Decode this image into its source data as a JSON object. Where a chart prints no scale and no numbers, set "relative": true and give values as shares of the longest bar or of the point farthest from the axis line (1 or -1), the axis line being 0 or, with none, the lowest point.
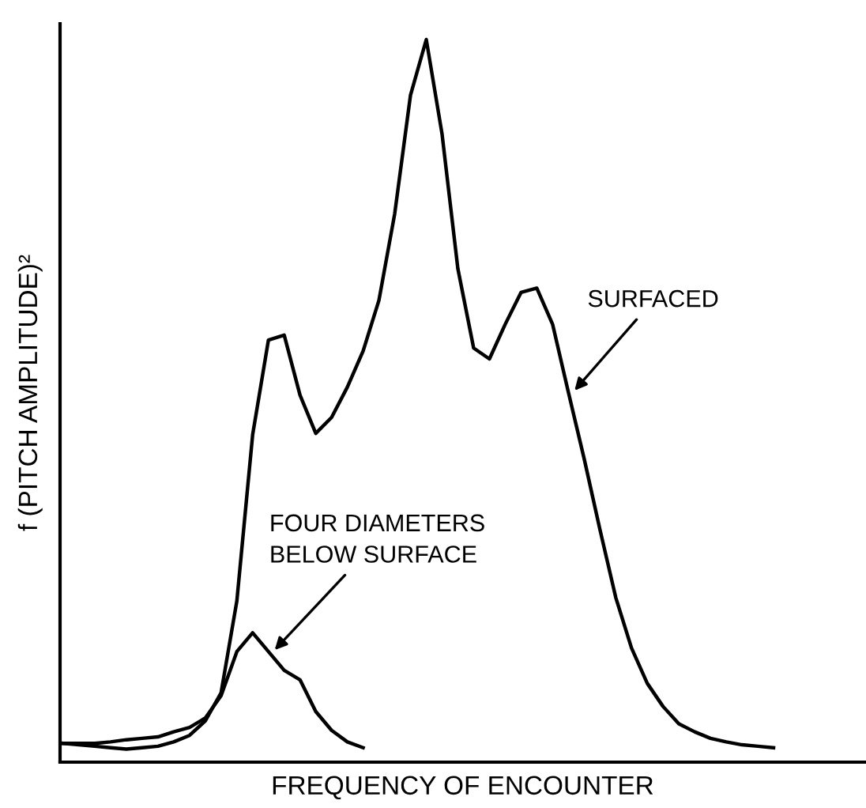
{
  "chart_data": {
    "type": "line",
    "relative": true,
    "xlabel": "FREQUENCY OF ENCOUNTER",
    "ylabel": "f (PITCH AMPLITUDE)²",
    "categories": [
      null,
      null,
      null,
      null,
      null,
      null,
      null,
      null,
      null,
      null,
      null,
      null,
      null,
      null,
      null,
      null,
      null,
      null,
      null,
      null,
      null,
      null,
      null,
      null,
      null,
      null,
      null,
      null,
      null,
      null,
      null,
      null,
      null,
      null,
      null,
      null,
      null,
      null,
      null,
      null,
      null,
      null,
      null,
      null,
      null,
      null
    ],
    "series": [
      {
        "name": "SURFACED",
        "color": "#000000",
        "values": [
          0.026,
          0.024,
          0.022,
          0.02,
          0.018,
          0.02,
          0.022,
          0.028,
          0.037,
          0.057,
          0.096,
          0.223,
          0.453,
          0.584,
          0.591,
          0.508,
          0.455,
          0.477,
          0.519,
          0.569,
          0.639,
          0.759,
          0.923,
          1.0,
          0.869,
          0.683,
          0.573,
          0.558,
          0.606,
          0.65,
          0.656,
          0.606,
          0.512,
          0.42,
          0.322,
          0.228,
          0.158,
          0.109,
          0.077,
          0.053,
          0.042,
          0.033,
          0.028,
          0.024,
          0.022,
          0.02
        ]
      },
      {
        "name": "FOUR DIAMETERS\nBELOW SURFACE",
        "color": "#000000",
        "values": [
          0.026,
          0.026,
          0.026,
          0.028,
          0.031,
          0.033,
          0.035,
          0.042,
          0.048,
          0.061,
          0.092,
          0.153,
          0.179,
          0.153,
          0.127,
          0.114,
          0.07,
          0.044,
          0.028,
          0.02,
          null,
          null,
          null,
          null,
          null,
          null,
          null,
          null,
          null,
          null,
          null,
          null,
          null,
          null,
          null,
          null,
          null,
          null,
          null,
          null,
          null,
          null,
          null,
          null,
          null,
          null
        ]
      }
    ],
    "legend": false,
    "marker": "none",
    "line_style": "solid"
  }
}
